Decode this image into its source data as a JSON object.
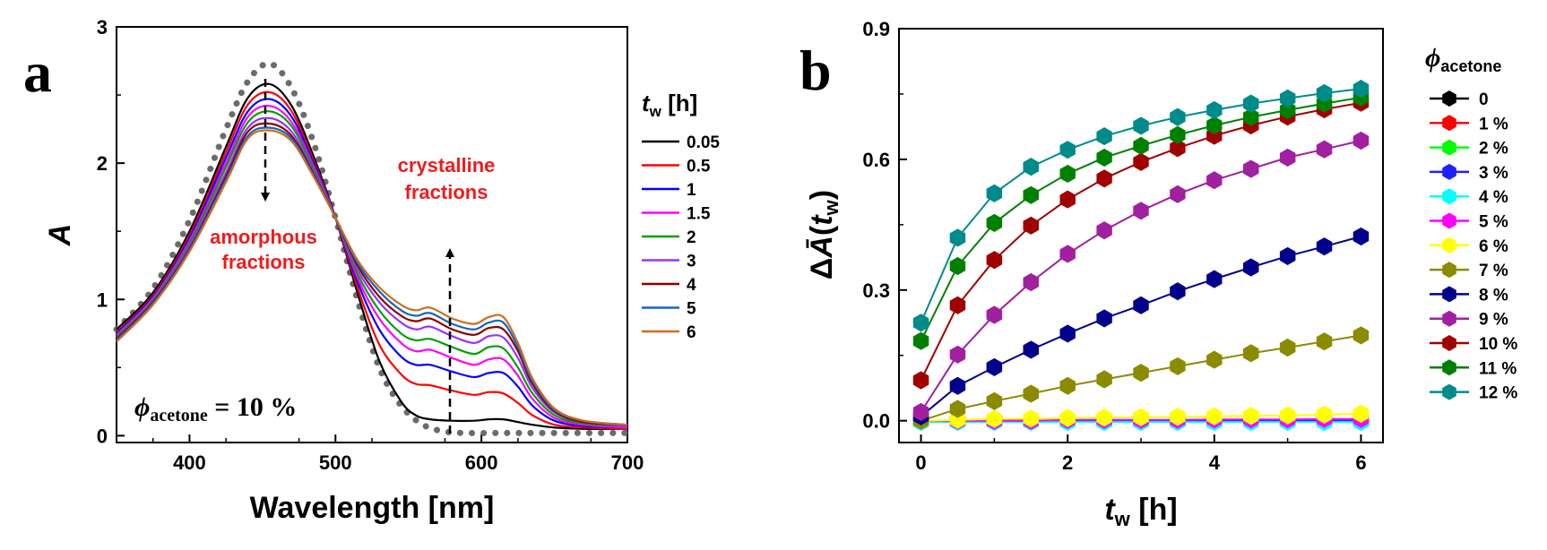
{
  "chart_data": [
    {
      "panel_label": "a",
      "type": "line",
      "xlabel": "Wavelength [nm]",
      "ylabel": "A",
      "xlim": [
        350,
        700
      ],
      "ylim": [
        -0.05,
        3.0
      ],
      "xticks": [
        400,
        500,
        600,
        700
      ],
      "yticks": [
        0,
        1,
        2,
        3
      ],
      "legend": {
        "title_var": "t",
        "title_sub": "w",
        "title_unit": " [h]",
        "placement": "right"
      },
      "annotations": {
        "amorphous_line1": "amorphous",
        "amorphous_line2": "fractions",
        "crystalline_line1": "crystalline",
        "crystalline_line2": "fractions",
        "phi_symbol": "ϕ",
        "phi_sub": "acetone",
        "phi_value": " = 10 %"
      },
      "reference_dotted": {
        "x": [
          350,
          375,
          400,
          425,
          440,
          455,
          470,
          485,
          500,
          515,
          530,
          545,
          560,
          575,
          590,
          610,
          630,
          660,
          700
        ],
        "y": [
          0.78,
          1.08,
          1.58,
          2.25,
          2.6,
          2.73,
          2.55,
          2.15,
          1.6,
          1.0,
          0.5,
          0.22,
          0.08,
          0.03,
          0.02,
          0.02,
          0.02,
          0.02,
          0.02
        ]
      },
      "series": [
        {
          "name": "0.05",
          "color": "#000000",
          "x": [
            350,
            375,
            400,
            425,
            440,
            455,
            470,
            485,
            500,
            515,
            530,
            545,
            555,
            565,
            580,
            595,
            605,
            615,
            625,
            635,
            650,
            670,
            700
          ],
          "y": [
            0.78,
            1.05,
            1.5,
            2.12,
            2.48,
            2.58,
            2.42,
            2.05,
            1.6,
            1.05,
            0.55,
            0.25,
            0.15,
            0.12,
            0.11,
            0.11,
            0.12,
            0.12,
            0.1,
            0.08,
            0.06,
            0.05,
            0.05
          ]
        },
        {
          "name": "0.5",
          "color": "#ff0000",
          "x": [
            350,
            375,
            400,
            425,
            440,
            455,
            470,
            485,
            500,
            515,
            530,
            545,
            555,
            565,
            580,
            595,
            605,
            615,
            625,
            635,
            650,
            670,
            700
          ],
          "y": [
            0.76,
            1.03,
            1.47,
            2.08,
            2.43,
            2.52,
            2.38,
            2.02,
            1.6,
            1.09,
            0.67,
            0.45,
            0.38,
            0.37,
            0.33,
            0.3,
            0.32,
            0.31,
            0.24,
            0.15,
            0.08,
            0.06,
            0.05
          ]
        },
        {
          "name": "1",
          "color": "#0000ff",
          "x": [
            350,
            375,
            400,
            425,
            440,
            455,
            470,
            485,
            500,
            515,
            530,
            545,
            555,
            565,
            580,
            595,
            605,
            615,
            625,
            635,
            650,
            670,
            700
          ],
          "y": [
            0.75,
            1.02,
            1.45,
            2.04,
            2.38,
            2.47,
            2.34,
            2.0,
            1.6,
            1.13,
            0.78,
            0.58,
            0.52,
            0.52,
            0.47,
            0.43,
            0.46,
            0.46,
            0.36,
            0.22,
            0.11,
            0.07,
            0.06
          ]
        },
        {
          "name": "1.5",
          "color": "#ff00ff",
          "x": [
            350,
            375,
            400,
            425,
            440,
            455,
            470,
            485,
            500,
            515,
            530,
            545,
            555,
            565,
            580,
            595,
            605,
            615,
            625,
            635,
            650,
            670,
            700
          ],
          "y": [
            0.74,
            1.01,
            1.43,
            2.0,
            2.34,
            2.42,
            2.3,
            1.98,
            1.6,
            1.16,
            0.86,
            0.68,
            0.62,
            0.63,
            0.57,
            0.52,
            0.56,
            0.56,
            0.44,
            0.27,
            0.13,
            0.08,
            0.06
          ]
        },
        {
          "name": "2",
          "color": "#00a000",
          "x": [
            350,
            375,
            400,
            425,
            440,
            455,
            470,
            485,
            500,
            515,
            530,
            545,
            555,
            565,
            580,
            595,
            605,
            615,
            625,
            635,
            650,
            670,
            700
          ],
          "y": [
            0.73,
            1.0,
            1.41,
            1.97,
            2.3,
            2.38,
            2.27,
            1.96,
            1.6,
            1.19,
            0.92,
            0.75,
            0.7,
            0.71,
            0.65,
            0.6,
            0.65,
            0.64,
            0.5,
            0.31,
            0.15,
            0.09,
            0.07
          ]
        },
        {
          "name": "3",
          "color": "#9932ff",
          "x": [
            350,
            375,
            400,
            425,
            440,
            455,
            470,
            485,
            500,
            515,
            530,
            545,
            555,
            565,
            580,
            595,
            605,
            615,
            625,
            635,
            650,
            670,
            700
          ],
          "y": [
            0.72,
            0.99,
            1.39,
            1.93,
            2.26,
            2.33,
            2.23,
            1.94,
            1.6,
            1.22,
            0.98,
            0.83,
            0.78,
            0.8,
            0.73,
            0.68,
            0.73,
            0.72,
            0.57,
            0.35,
            0.17,
            0.1,
            0.07
          ]
        },
        {
          "name": "4",
          "color": "#8b0000",
          "x": [
            350,
            375,
            400,
            425,
            440,
            455,
            470,
            485,
            500,
            515,
            530,
            545,
            555,
            565,
            580,
            595,
            605,
            615,
            625,
            635,
            650,
            670,
            700
          ],
          "y": [
            0.71,
            0.98,
            1.37,
            1.9,
            2.23,
            2.29,
            2.2,
            1.92,
            1.6,
            1.25,
            1.02,
            0.88,
            0.84,
            0.86,
            0.78,
            0.74,
            0.79,
            0.78,
            0.62,
            0.38,
            0.18,
            0.1,
            0.08
          ]
        },
        {
          "name": "5",
          "color": "#1565c0",
          "x": [
            350,
            375,
            400,
            425,
            440,
            455,
            470,
            485,
            500,
            515,
            530,
            545,
            555,
            565,
            580,
            595,
            605,
            615,
            625,
            635,
            650,
            670,
            700
          ],
          "y": [
            0.7,
            0.97,
            1.36,
            1.88,
            2.2,
            2.26,
            2.18,
            1.91,
            1.6,
            1.27,
            1.06,
            0.92,
            0.88,
            0.9,
            0.82,
            0.78,
            0.83,
            0.83,
            0.65,
            0.4,
            0.19,
            0.11,
            0.08
          ]
        },
        {
          "name": "6",
          "color": "#c87020",
          "x": [
            350,
            375,
            400,
            425,
            440,
            455,
            470,
            485,
            500,
            515,
            530,
            545,
            555,
            565,
            580,
            595,
            605,
            615,
            625,
            635,
            650,
            670,
            700
          ],
          "y": [
            0.69,
            0.96,
            1.35,
            1.86,
            2.18,
            2.24,
            2.16,
            1.9,
            1.6,
            1.29,
            1.09,
            0.96,
            0.92,
            0.94,
            0.86,
            0.82,
            0.87,
            0.87,
            0.68,
            0.42,
            0.2,
            0.11,
            0.08
          ]
        }
      ]
    },
    {
      "panel_label": "b",
      "type": "line",
      "xlabel_var": "t",
      "xlabel_sub": "w",
      "xlabel_unit": " [h]",
      "ylabel": "ΔĀ(t_w)",
      "ylabel_prefix": "Δ",
      "ylabel_var": "Ā",
      "ylabel_open": "(",
      "ylabel_tvar": "t",
      "ylabel_tsub": "w",
      "ylabel_close": ")",
      "xlim": [
        -0.3,
        6.3
      ],
      "ylim": [
        -0.05,
        0.9
      ],
      "xticks": [
        0,
        2,
        4,
        6
      ],
      "yticks": [
        "0.0",
        "0.3",
        "0.6",
        "0.9"
      ],
      "yticks_values": [
        0,
        0.3,
        0.6,
        0.9
      ],
      "x": [
        0,
        0.5,
        1,
        1.5,
        2,
        2.5,
        3,
        3.5,
        4,
        4.5,
        5,
        5.5,
        6
      ],
      "legend": {
        "title_symbol": "ϕ",
        "title_sub": "acetone",
        "placement": "right"
      },
      "series": [
        {
          "name": "0",
          "color": "#000000",
          "values": [
            0,
            0,
            0,
            0,
            0,
            0,
            0,
            0,
            0,
            0,
            0,
            0,
            0
          ]
        },
        {
          "name": "1 %",
          "color": "#ff0000",
          "values": [
            0,
            0,
            0,
            0,
            0,
            0,
            0,
            0,
            0,
            0,
            0,
            0,
            0
          ]
        },
        {
          "name": "2 %",
          "color": "#00ff00",
          "values": [
            0,
            0,
            0,
            0,
            0,
            0,
            0,
            0,
            0,
            0,
            0,
            0,
            0
          ]
        },
        {
          "name": "3 %",
          "color": "#2020ff",
          "values": [
            0,
            0,
            0,
            0,
            0,
            0,
            0,
            0,
            0,
            0,
            0,
            0,
            0
          ]
        },
        {
          "name": "4 %",
          "color": "#00ffff",
          "values": [
            -0.003,
            -0.003,
            -0.003,
            -0.003,
            -0.003,
            -0.003,
            -0.003,
            -0.003,
            -0.003,
            -0.003,
            -0.003,
            -0.003,
            -0.003
          ]
        },
        {
          "name": "5 %",
          "color": "#ff00ff",
          "values": [
            0,
            0,
            0,
            0,
            0.002,
            0.002,
            0.002,
            0.002,
            0.003,
            0.003,
            0.003,
            0.004,
            0.004
          ]
        },
        {
          "name": "6 %",
          "color": "#ffff00",
          "values": [
            0,
            0.002,
            0.004,
            0.005,
            0.006,
            0.007,
            0.008,
            0.009,
            0.01,
            0.011,
            0.012,
            0.014,
            0.016
          ]
        },
        {
          "name": "7 %",
          "color": "#8b8b00",
          "values": [
            0,
            0.027,
            0.045,
            0.062,
            0.08,
            0.095,
            0.11,
            0.125,
            0.14,
            0.155,
            0.168,
            0.182,
            0.196
          ]
        },
        {
          "name": "8 %",
          "color": "#00008b",
          "values": [
            0.01,
            0.08,
            0.123,
            0.163,
            0.2,
            0.235,
            0.265,
            0.297,
            0.325,
            0.352,
            0.378,
            0.4,
            0.423
          ]
        },
        {
          "name": "9 %",
          "color": "#a020a0",
          "values": [
            0.02,
            0.152,
            0.243,
            0.318,
            0.383,
            0.437,
            0.482,
            0.52,
            0.552,
            0.578,
            0.604,
            0.623,
            0.643
          ]
        },
        {
          "name": "10 %",
          "color": "#a00000",
          "values": [
            0.093,
            0.265,
            0.369,
            0.448,
            0.508,
            0.556,
            0.594,
            0.626,
            0.654,
            0.678,
            0.698,
            0.715,
            0.73
          ]
        },
        {
          "name": "11 %",
          "color": "#008000",
          "values": [
            0.183,
            0.355,
            0.454,
            0.518,
            0.567,
            0.604,
            0.631,
            0.656,
            0.678,
            0.697,
            0.713,
            0.728,
            0.742
          ]
        },
        {
          "name": "12 %",
          "color": "#008b8b",
          "values": [
            0.225,
            0.42,
            0.522,
            0.583,
            0.622,
            0.653,
            0.677,
            0.697,
            0.713,
            0.728,
            0.74,
            0.752,
            0.762
          ]
        }
      ]
    }
  ]
}
